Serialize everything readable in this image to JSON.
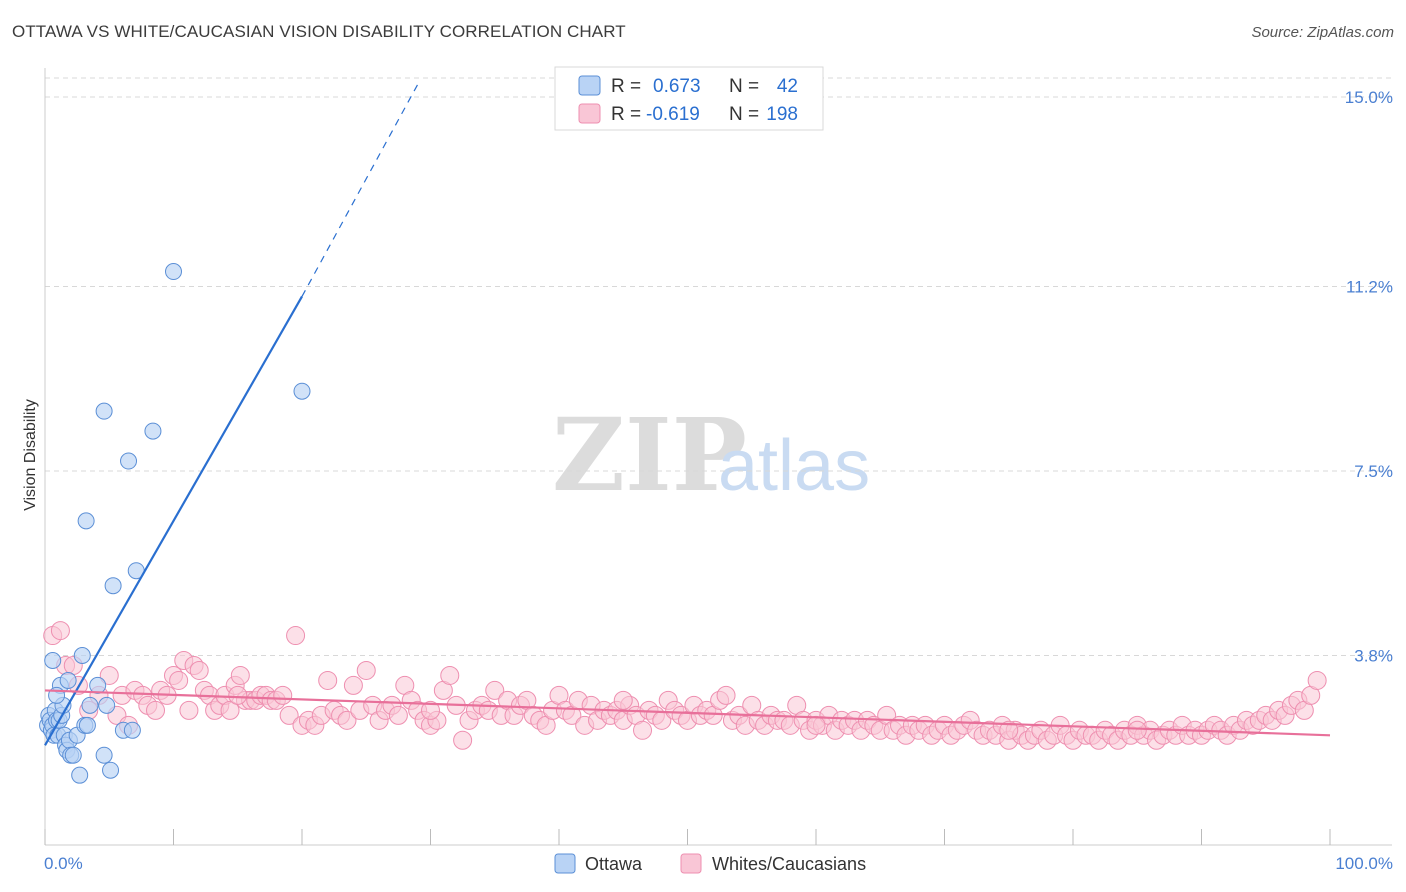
{
  "header": {
    "title": "OTTAWA VS WHITE/CAUCASIAN VISION DISABILITY CORRELATION CHART",
    "source": "Source: ZipAtlas.com"
  },
  "watermark": {
    "zip": "ZIP",
    "atlas": "atlas"
  },
  "colors": {
    "ottawa_fill": "#b9d3f5",
    "ottawa_stroke": "#5b8fd6",
    "ottawa_line": "#2a6fd0",
    "white_fill": "#f9c6d6",
    "white_stroke": "#ee8fb0",
    "white_line": "#e8709a",
    "tick_label": "#4a7fd1",
    "grid": "#d8d8d8"
  },
  "legend": {
    "rows": [
      {
        "r_label": "R =",
        "r_value": "0.673",
        "n_label": "N =",
        "n_value": "42"
      },
      {
        "r_label": "R =",
        "r_value": "-0.619",
        "n_label": "N =",
        "n_value": "198"
      }
    ]
  },
  "chart_data": {
    "type": "scatter",
    "title": "OTTAWA VS WHITE/CAUCASIAN VISION DISABILITY CORRELATION CHART",
    "xlabel": "",
    "ylabel": "Vision Disability",
    "xlim": [
      0,
      100
    ],
    "ylim": [
      0,
      15.5
    ],
    "y_ticks": [
      3.8,
      7.5,
      11.2,
      15.0
    ],
    "y_tick_labels": [
      "3.8%",
      "7.5%",
      "11.2%",
      "15.0%"
    ],
    "x_tick_labels": [
      "0.0%",
      "100.0%"
    ],
    "grid": true,
    "series": [
      {
        "name": "Ottawa",
        "R": 0.673,
        "N": 42,
        "trend": {
          "x0": 0.0,
          "y0": 2.0,
          "x1": 20.0,
          "y1": 11.0,
          "dash_to_x": 29.0,
          "dash_to_y": 15.25
        },
        "points": [
          [
            0.2,
            2.4
          ],
          [
            0.3,
            2.6
          ],
          [
            0.4,
            2.5
          ],
          [
            0.5,
            2.3
          ],
          [
            0.6,
            2.4
          ],
          [
            0.7,
            2.2
          ],
          [
            0.8,
            2.7
          ],
          [
            0.9,
            2.5
          ],
          [
            1.0,
            2.2
          ],
          [
            1.1,
            2.5
          ],
          [
            1.2,
            3.2
          ],
          [
            1.3,
            2.6
          ],
          [
            1.4,
            2.8
          ],
          [
            1.5,
            2.2
          ],
          [
            1.6,
            2.0
          ],
          [
            1.7,
            1.9
          ],
          [
            1.8,
            3.3
          ],
          [
            1.9,
            2.1
          ],
          [
            2.0,
            1.8
          ],
          [
            2.2,
            1.8
          ],
          [
            2.5,
            2.2
          ],
          [
            2.7,
            1.4
          ],
          [
            2.9,
            3.8
          ],
          [
            3.1,
            2.4
          ],
          [
            3.3,
            2.4
          ],
          [
            3.5,
            2.8
          ],
          [
            0.6,
            3.7
          ],
          [
            0.9,
            3.0
          ],
          [
            4.1,
            3.2
          ],
          [
            4.6,
            1.8
          ],
          [
            4.8,
            2.8
          ],
          [
            5.1,
            1.5
          ],
          [
            5.3,
            5.2
          ],
          [
            6.1,
            2.3
          ],
          [
            6.5,
            7.7
          ],
          [
            6.8,
            2.3
          ],
          [
            7.1,
            5.5
          ],
          [
            8.4,
            8.3
          ],
          [
            10.0,
            11.5
          ],
          [
            20.0,
            9.1
          ],
          [
            3.2,
            6.5
          ],
          [
            4.6,
            8.7
          ]
        ]
      },
      {
        "name": "Whites/Caucasians",
        "R": -0.619,
        "N": 198,
        "trend": {
          "x0": 0.0,
          "y0": 3.1,
          "x1": 100.0,
          "y1": 2.2
        },
        "points": [
          [
            0.6,
            4.2
          ],
          [
            1.2,
            4.3
          ],
          [
            1.6,
            3.6
          ],
          [
            2.2,
            3.6
          ],
          [
            2.6,
            3.2
          ],
          [
            3.4,
            2.7
          ],
          [
            4.2,
            3.0
          ],
          [
            5.0,
            3.4
          ],
          [
            5.6,
            2.6
          ],
          [
            6.0,
            3.0
          ],
          [
            6.5,
            2.4
          ],
          [
            7.0,
            3.1
          ],
          [
            7.6,
            3.0
          ],
          [
            8.0,
            2.8
          ],
          [
            8.6,
            2.7
          ],
          [
            9.0,
            3.1
          ],
          [
            9.5,
            3.0
          ],
          [
            10.0,
            3.4
          ],
          [
            10.4,
            3.3
          ],
          [
            10.8,
            3.7
          ],
          [
            11.2,
            2.7
          ],
          [
            11.6,
            3.6
          ],
          [
            12.0,
            3.5
          ],
          [
            12.4,
            3.1
          ],
          [
            12.8,
            3.0
          ],
          [
            13.2,
            2.7
          ],
          [
            13.6,
            2.8
          ],
          [
            14.0,
            3.0
          ],
          [
            14.4,
            2.7
          ],
          [
            14.8,
            3.2
          ],
          [
            15.2,
            3.4
          ],
          [
            15.6,
            2.9
          ],
          [
            16.0,
            2.9
          ],
          [
            16.4,
            2.9
          ],
          [
            16.8,
            3.0
          ],
          [
            17.2,
            3.0
          ],
          [
            17.6,
            2.9
          ],
          [
            18.0,
            2.9
          ],
          [
            18.5,
            3.0
          ],
          [
            19.0,
            2.6
          ],
          [
            19.5,
            4.2
          ],
          [
            20.0,
            2.4
          ],
          [
            20.5,
            2.5
          ],
          [
            21.0,
            2.4
          ],
          [
            21.5,
            2.6
          ],
          [
            22.0,
            3.3
          ],
          [
            22.5,
            2.7
          ],
          [
            23.0,
            2.6
          ],
          [
            23.5,
            2.5
          ],
          [
            24.0,
            3.2
          ],
          [
            24.5,
            2.7
          ],
          [
            25.0,
            3.5
          ],
          [
            25.5,
            2.8
          ],
          [
            26.0,
            2.5
          ],
          [
            26.5,
            2.7
          ],
          [
            27.0,
            2.8
          ],
          [
            27.5,
            2.6
          ],
          [
            28.0,
            3.2
          ],
          [
            28.5,
            2.9
          ],
          [
            29.0,
            2.7
          ],
          [
            29.5,
            2.5
          ],
          [
            30.0,
            2.4
          ],
          [
            30.5,
            2.5
          ],
          [
            31.0,
            3.1
          ],
          [
            31.5,
            3.4
          ],
          [
            32.0,
            2.8
          ],
          [
            32.5,
            2.1
          ],
          [
            33.0,
            2.5
          ],
          [
            33.5,
            2.7
          ],
          [
            34.0,
            2.8
          ],
          [
            34.5,
            2.7
          ],
          [
            35.0,
            3.1
          ],
          [
            35.5,
            2.6
          ],
          [
            36.0,
            2.9
          ],
          [
            36.5,
            2.6
          ],
          [
            37.0,
            2.8
          ],
          [
            37.5,
            2.9
          ],
          [
            38.0,
            2.6
          ],
          [
            38.5,
            2.5
          ],
          [
            39.0,
            2.4
          ],
          [
            39.5,
            2.7
          ],
          [
            40.0,
            3.0
          ],
          [
            40.5,
            2.7
          ],
          [
            41.0,
            2.6
          ],
          [
            41.5,
            2.9
          ],
          [
            42.0,
            2.4
          ],
          [
            42.5,
            2.8
          ],
          [
            43.0,
            2.5
          ],
          [
            43.5,
            2.7
          ],
          [
            44.0,
            2.6
          ],
          [
            44.5,
            2.7
          ],
          [
            45.0,
            2.5
          ],
          [
            45.5,
            2.8
          ],
          [
            46.0,
            2.6
          ],
          [
            46.5,
            2.3
          ],
          [
            47.0,
            2.7
          ],
          [
            47.5,
            2.6
          ],
          [
            48.0,
            2.5
          ],
          [
            48.5,
            2.9
          ],
          [
            49.0,
            2.7
          ],
          [
            49.5,
            2.6
          ],
          [
            50.0,
            2.5
          ],
          [
            50.5,
            2.8
          ],
          [
            51.0,
            2.6
          ],
          [
            51.5,
            2.7
          ],
          [
            52.0,
            2.6
          ],
          [
            52.5,
            2.9
          ],
          [
            53.0,
            3.0
          ],
          [
            53.5,
            2.5
          ],
          [
            54.0,
            2.6
          ],
          [
            54.5,
            2.4
          ],
          [
            55.0,
            2.8
          ],
          [
            55.5,
            2.5
          ],
          [
            56.0,
            2.4
          ],
          [
            56.5,
            2.6
          ],
          [
            57.0,
            2.5
          ],
          [
            57.5,
            2.5
          ],
          [
            58.0,
            2.4
          ],
          [
            58.5,
            2.8
          ],
          [
            59.0,
            2.5
          ],
          [
            59.5,
            2.3
          ],
          [
            60.0,
            2.5
          ],
          [
            60.5,
            2.4
          ],
          [
            61.0,
            2.6
          ],
          [
            61.5,
            2.3
          ],
          [
            62.0,
            2.5
          ],
          [
            62.5,
            2.4
          ],
          [
            63.0,
            2.5
          ],
          [
            63.5,
            2.3
          ],
          [
            64.0,
            2.5
          ],
          [
            64.5,
            2.4
          ],
          [
            65.0,
            2.3
          ],
          [
            65.5,
            2.6
          ],
          [
            66.0,
            2.3
          ],
          [
            66.5,
            2.4
          ],
          [
            67.0,
            2.2
          ],
          [
            67.5,
            2.4
          ],
          [
            68.0,
            2.3
          ],
          [
            68.5,
            2.4
          ],
          [
            69.0,
            2.2
          ],
          [
            69.5,
            2.3
          ],
          [
            70.0,
            2.4
          ],
          [
            70.5,
            2.2
          ],
          [
            71.0,
            2.3
          ],
          [
            71.5,
            2.4
          ],
          [
            72.0,
            2.5
          ],
          [
            72.5,
            2.3
          ],
          [
            73.0,
            2.2
          ],
          [
            73.5,
            2.3
          ],
          [
            74.0,
            2.2
          ],
          [
            74.5,
            2.4
          ],
          [
            75.0,
            2.1
          ],
          [
            75.5,
            2.3
          ],
          [
            76.0,
            2.2
          ],
          [
            76.5,
            2.1
          ],
          [
            77.0,
            2.2
          ],
          [
            77.5,
            2.3
          ],
          [
            78.0,
            2.1
          ],
          [
            78.5,
            2.2
          ],
          [
            79.0,
            2.4
          ],
          [
            79.5,
            2.2
          ],
          [
            80.0,
            2.1
          ],
          [
            80.5,
            2.3
          ],
          [
            81.0,
            2.2
          ],
          [
            81.5,
            2.2
          ],
          [
            82.0,
            2.1
          ],
          [
            82.5,
            2.3
          ],
          [
            83.0,
            2.2
          ],
          [
            83.5,
            2.1
          ],
          [
            84.0,
            2.3
          ],
          [
            84.5,
            2.2
          ],
          [
            85.0,
            2.4
          ],
          [
            85.5,
            2.2
          ],
          [
            86.0,
            2.3
          ],
          [
            86.5,
            2.1
          ],
          [
            87.0,
            2.2
          ],
          [
            87.5,
            2.3
          ],
          [
            88.0,
            2.2
          ],
          [
            88.5,
            2.4
          ],
          [
            89.0,
            2.2
          ],
          [
            89.5,
            2.3
          ],
          [
            90.0,
            2.2
          ],
          [
            90.5,
            2.3
          ],
          [
            91.0,
            2.4
          ],
          [
            91.5,
            2.3
          ],
          [
            92.0,
            2.2
          ],
          [
            92.5,
            2.4
          ],
          [
            93.0,
            2.3
          ],
          [
            93.5,
            2.5
          ],
          [
            94.0,
            2.4
          ],
          [
            94.5,
            2.5
          ],
          [
            95.0,
            2.6
          ],
          [
            95.5,
            2.5
          ],
          [
            96.0,
            2.7
          ],
          [
            96.5,
            2.6
          ],
          [
            97.0,
            2.8
          ],
          [
            97.5,
            2.9
          ],
          [
            98.0,
            2.7
          ],
          [
            98.5,
            3.0
          ],
          [
            99.0,
            3.3
          ],
          [
            15.0,
            3.0
          ],
          [
            30.0,
            2.7
          ],
          [
            45.0,
            2.9
          ],
          [
            60.0,
            2.4
          ],
          [
            75.0,
            2.3
          ],
          [
            85.0,
            2.3
          ]
        ]
      }
    ]
  },
  "bottom_legend": {
    "items": [
      {
        "label": "Ottawa"
      },
      {
        "label": "Whites/Caucasians"
      }
    ]
  }
}
